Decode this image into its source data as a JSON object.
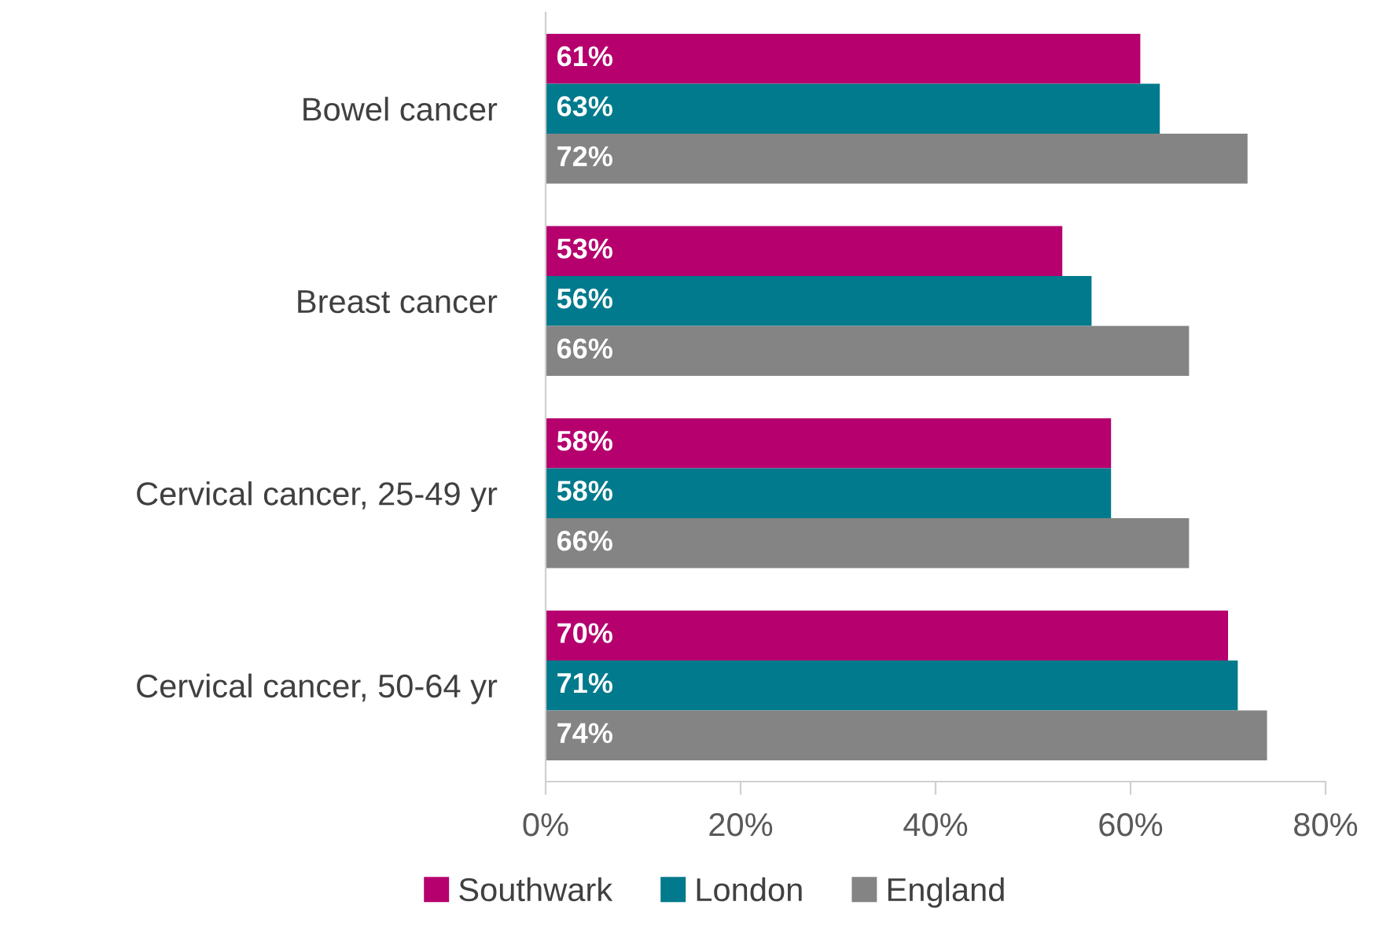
{
  "chart_data": {
    "type": "bar",
    "orientation": "horizontal",
    "categories": [
      "Bowel cancer",
      "Breast cancer",
      "Cervical cancer, 25-49 yr",
      "Cervical cancer, 50-64 yr"
    ],
    "series": [
      {
        "name": "Southwark",
        "color": "#b5006e",
        "values": [
          61,
          53,
          58,
          70
        ],
        "value_labels": [
          "61%",
          "53%",
          "58%",
          "70%"
        ]
      },
      {
        "name": "London",
        "color": "#007a8c",
        "values": [
          63,
          56,
          58,
          71
        ],
        "value_labels": [
          "63%",
          "56%",
          "58%",
          "71%"
        ]
      },
      {
        "name": "England",
        "color": "#848484",
        "values": [
          72,
          66,
          66,
          74
        ],
        "value_labels": [
          "72%",
          "66%",
          "66%",
          "74%"
        ]
      }
    ],
    "xlim": [
      0,
      80
    ],
    "xticks": [
      {
        "value": 0,
        "label": "0%"
      },
      {
        "value": 20,
        "label": "20%"
      },
      {
        "value": 40,
        "label": "40%"
      },
      {
        "value": 60,
        "label": "60%"
      },
      {
        "value": 80,
        "label": "80%"
      }
    ],
    "grid": false,
    "legend": "bottom"
  }
}
